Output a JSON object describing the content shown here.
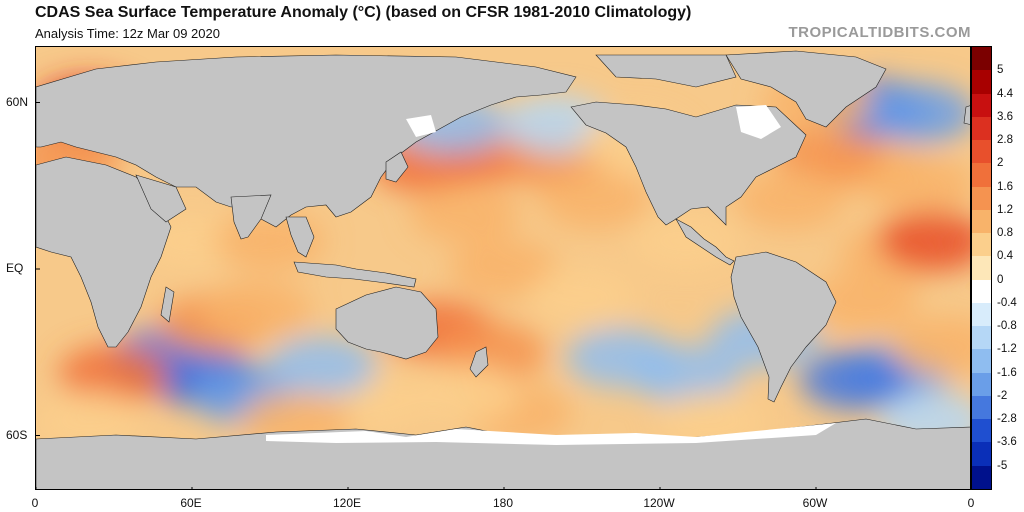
{
  "header": {
    "title": "CDAS Sea Surface Temperature Anomaly (°C) (based on CFSR 1981-2010 Climatology)",
    "analysis_time": "Analysis Time: 12z Mar 09 2020",
    "credit": "TROPICALTIDBITS.COM"
  },
  "map": {
    "projection": "equirectangular",
    "lon_range": [
      0,
      360
    ],
    "lat_range": [
      -80,
      80
    ],
    "x_ticks": [
      {
        "label": "0",
        "lon": 0
      },
      {
        "label": "60E",
        "lon": 60
      },
      {
        "label": "120E",
        "lon": 120
      },
      {
        "label": "180",
        "lon": 180
      },
      {
        "label": "120W",
        "lon": 240
      },
      {
        "label": "60W",
        "lon": 300
      },
      {
        "label": "0",
        "lon": 360
      }
    ],
    "y_ticks": [
      {
        "label": "60N",
        "lat": 60
      },
      {
        "label": "EQ",
        "lat": 0
      },
      {
        "label": "60S",
        "lat": -60
      }
    ],
    "land_color": "#c4c4c4",
    "ice_color": "#ffffff"
  },
  "colorbar": {
    "labels": [
      "5",
      "4.4",
      "3.6",
      "2.8",
      "2",
      "1.6",
      "1.2",
      "0.8",
      "0.4",
      "0",
      "-0.4",
      "-0.8",
      "-1.2",
      "-1.6",
      "-2",
      "-2.8",
      "-3.6",
      "-5"
    ],
    "colors": [
      "#7b0000",
      "#a80000",
      "#c81010",
      "#dc3020",
      "#e8502c",
      "#f0703a",
      "#f59350",
      "#f8b36a",
      "#fbcf8c",
      "#fde7b8",
      "#ffffff",
      "#d8ecfb",
      "#b5d7f6",
      "#8fbdf0",
      "#6a9ee8",
      "#4578de",
      "#1f4fd0",
      "#0a2fb8",
      "#00118c"
    ]
  },
  "anomaly_patches": [
    {
      "lon": 62,
      "lat": -38,
      "level": -2.0
    },
    {
      "lon": 50,
      "lat": -32,
      "level": -1.6
    },
    {
      "lon": 80,
      "lat": -45,
      "level": -1.2
    },
    {
      "lon": 68,
      "lat": -20,
      "level": 1.2
    },
    {
      "lon": 85,
      "lat": -15,
      "level": 0.8
    },
    {
      "lon": 30,
      "lat": -38,
      "level": 1.6
    },
    {
      "lon": 20,
      "lat": 58,
      "level": 2.8
    },
    {
      "lon": 12,
      "lat": 40,
      "level": 1.2
    },
    {
      "lon": 150,
      "lat": 38,
      "level": 1.6
    },
    {
      "lon": 175,
      "lat": 42,
      "level": 1.6
    },
    {
      "lon": 200,
      "lat": 40,
      "level": 1.2
    },
    {
      "lon": 160,
      "lat": 52,
      "level": -0.8
    },
    {
      "lon": 200,
      "lat": 52,
      "level": -0.4
    },
    {
      "lon": 165,
      "lat": 20,
      "level": 0.8
    },
    {
      "lon": 215,
      "lat": 25,
      "level": 0.8
    },
    {
      "lon": 180,
      "lat": 0,
      "level": 0.8
    },
    {
      "lon": 155,
      "lat": -22,
      "level": 1.6
    },
    {
      "lon": 175,
      "lat": -30,
      "level": 1.2
    },
    {
      "lon": 210,
      "lat": -10,
      "level": 0.4
    },
    {
      "lon": 225,
      "lat": -32,
      "level": -0.8
    },
    {
      "lon": 250,
      "lat": -38,
      "level": -0.8
    },
    {
      "lon": 280,
      "lat": -25,
      "level": -0.8
    },
    {
      "lon": 185,
      "lat": -52,
      "level": 0.8
    },
    {
      "lon": 130,
      "lat": -48,
      "level": 0.4
    },
    {
      "lon": 165,
      "lat": -45,
      "level": 0.4
    },
    {
      "lon": 110,
      "lat": -35,
      "level": -0.8
    },
    {
      "lon": 330,
      "lat": -38,
      "level": -1.2
    },
    {
      "lon": 315,
      "lat": -40,
      "level": -1.6
    },
    {
      "lon": 350,
      "lat": -28,
      "level": 0.8
    },
    {
      "lon": 318,
      "lat": -12,
      "level": 0.8
    },
    {
      "lon": 330,
      "lat": 5,
      "level": 0.8
    },
    {
      "lon": 340,
      "lat": 30,
      "level": 0.8
    },
    {
      "lon": 320,
      "lat": 38,
      "level": 0.8
    },
    {
      "lon": 305,
      "lat": 42,
      "level": 1.2
    },
    {
      "lon": 322,
      "lat": 58,
      "level": -1.6
    },
    {
      "lon": 340,
      "lat": 56,
      "level": -1.2
    },
    {
      "lon": 300,
      "lat": 60,
      "level": 0.8
    },
    {
      "lon": 290,
      "lat": 25,
      "level": 0.8
    },
    {
      "lon": 345,
      "lat": 10,
      "level": 2.0
    },
    {
      "lon": 250,
      "lat": 10,
      "level": 0.4
    },
    {
      "lon": 230,
      "lat": 45,
      "level": 0.4
    },
    {
      "lon": 345,
      "lat": -55,
      "level": -0.4
    },
    {
      "lon": 20,
      "lat": -55,
      "level": 0.4
    },
    {
      "lon": 100,
      "lat": -55,
      "level": 0.8
    },
    {
      "lon": 260,
      "lat": -55,
      "level": 0.4
    },
    {
      "lon": 60,
      "lat": 10,
      "level": 0.4
    },
    {
      "lon": 90,
      "lat": 10,
      "level": 0.8
    }
  ]
}
